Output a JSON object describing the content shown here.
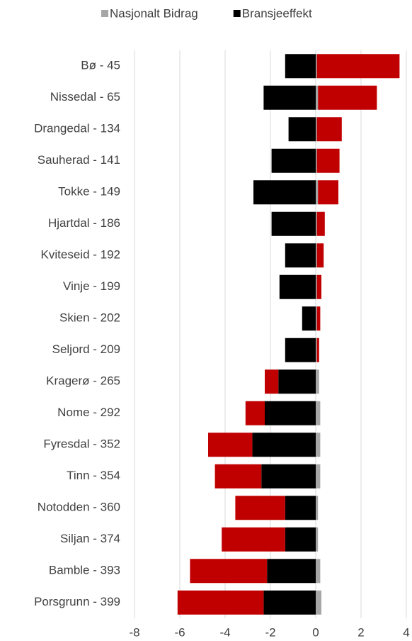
{
  "chart_data": {
    "type": "bar",
    "orientation": "horizontal",
    "stacked": true,
    "categories": [
      "Bø - 45",
      "Nissedal - 65",
      "Drangedal - 134",
      "Sauherad - 141",
      "Tokke - 149",
      "Hjartdal - 186",
      "Kviteseid - 192",
      "Vinje - 199",
      "Skien - 202",
      "Seljord - 209",
      "Kragerø - 265",
      "Nome - 292",
      "Fyresdal - 352",
      "Tinn - 354",
      "Notodden - 360",
      "Siljan - 374",
      "Bamble - 393",
      "Porsgrunn - 399"
    ],
    "series": [
      {
        "name": "Nasjonalt Bidrag",
        "color": "#a6a6a6",
        "values": [
          0.05,
          0.1,
          0.05,
          0.05,
          0.1,
          0.05,
          0.05,
          0.05,
          0.05,
          0.05,
          0.15,
          0.2,
          0.2,
          0.2,
          0.1,
          0.1,
          0.2,
          0.25
        ]
      },
      {
        "name": "Bransjeeffekt",
        "color": "#000000",
        "values": [
          -1.35,
          -2.3,
          -1.2,
          -1.95,
          -2.75,
          -1.95,
          -1.35,
          -1.6,
          -0.6,
          -1.35,
          -1.65,
          -2.25,
          -2.8,
          -2.4,
          -1.35,
          -1.35,
          -2.15,
          -2.3
        ]
      },
      {
        "color": "#c00000",
        "values": [
          3.65,
          2.6,
          1.1,
          1.0,
          0.9,
          0.35,
          0.3,
          0.2,
          0.15,
          0.1,
          -0.6,
          -0.85,
          -1.95,
          -2.05,
          -2.2,
          -2.8,
          -3.4,
          -3.8
        ]
      }
    ],
    "xlim": [
      -8,
      4
    ],
    "xticks": [
      -8,
      -6,
      -4,
      -2,
      0,
      2,
      4
    ],
    "grid": true,
    "legend": "top"
  }
}
